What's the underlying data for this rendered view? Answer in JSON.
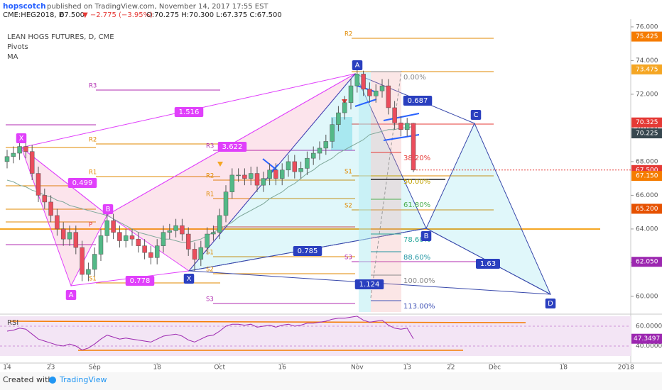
{
  "header": {
    "author": "hopscotch",
    "published": "published on TradingView.com, November 14, 2017 17:55 EST",
    "symbol": "CME:HEG2018, D",
    "last": "67.500",
    "change": "▼ −2.775 (−3.95%)",
    "ohlc": "O:70.275 H:70.300 L:67.375 C:67.500"
  },
  "legend": [
    "LEAN HOGS FUTURES, D, CME",
    "Pivots",
    "MA"
  ],
  "chart_data": {
    "type": "candlestick",
    "up_color": "#53b987",
    "down_color": "#eb4d5c",
    "ma_color": "#7fa89a",
    "rsi_color": "#9c27b0",
    "xlim": [
      -1.136,
      99.77
    ],
    "ylim": [
      59.07,
      76.46
    ],
    "xticks": [
      {
        "value": 0,
        "label": "14"
      },
      {
        "value": 7,
        "label": "23"
      },
      {
        "value": 14,
        "label": "Sep"
      },
      {
        "value": 24,
        "label": "18"
      },
      {
        "value": 34,
        "label": "Oct"
      },
      {
        "value": 44,
        "label": "16"
      },
      {
        "value": 56,
        "label": "Nov"
      },
      {
        "value": 64,
        "label": "13"
      },
      {
        "value": 71,
        "label": "22"
      },
      {
        "value": 78,
        "label": "Dec"
      },
      {
        "value": 89,
        "label": "18"
      },
      {
        "value": 99,
        "label": "2018"
      }
    ],
    "yticks": [
      {
        "value": 60,
        "label": "60.000"
      },
      {
        "value": 62,
        "label": "62.000"
      },
      {
        "value": 64,
        "label": "64.000"
      },
      {
        "value": 66,
        "label": "66.000"
      },
      {
        "value": 68,
        "label": "68.000"
      },
      {
        "value": 70,
        "label": "70.000"
      },
      {
        "value": 72,
        "label": "72.000"
      },
      {
        "value": 74,
        "label": "74.000"
      },
      {
        "value": 76,
        "label": "76.000"
      }
    ],
    "open": [
      68.0,
      68.3,
      68.5,
      68.9,
      68.6,
      67.3,
      66.0,
      65.6,
      64.8,
      64.0,
      63.4,
      63.8,
      62.9,
      61.3,
      61.6,
      62.5,
      63.6,
      64.5,
      63.8,
      63.3,
      63.6,
      63.4,
      63.0,
      62.6,
      62.3,
      63.0,
      63.8,
      63.9,
      64.2,
      63.7,
      62.8,
      62.2,
      62.9,
      63.7,
      63.8,
      64.8,
      66.2,
      67.2,
      67.2,
      67.0,
      67.3,
      66.6,
      67.0,
      67.5,
      67.0,
      67.5,
      68.0,
      67.4,
      67.6,
      68.2,
      68.5,
      68.8,
      69.2,
      70.2,
      70.9,
      71.5,
      72.5,
      73.2,
      72.3,
      71.9,
      72.2,
      72.5,
      71.2,
      70.3,
      69.9,
      70.275
    ],
    "high": [
      68.7,
      68.9,
      69.3,
      69.3,
      69.0,
      67.7,
      66.4,
      66.0,
      65.2,
      64.4,
      64.2,
      64.2,
      63.3,
      62.0,
      62.9,
      64.0,
      64.9,
      64.9,
      64.2,
      64.0,
      64.0,
      63.8,
      63.4,
      63.0,
      63.4,
      64.2,
      64.3,
      64.6,
      64.6,
      64.1,
      63.2,
      63.3,
      64.1,
      64.2,
      65.2,
      66.6,
      67.6,
      67.6,
      67.6,
      67.7,
      67.7,
      67.4,
      67.9,
      67.9,
      67.9,
      68.4,
      68.4,
      68.0,
      68.6,
      68.9,
      69.2,
      69.6,
      70.6,
      71.3,
      71.9,
      72.9,
      73.5,
      73.4,
      72.7,
      72.6,
      72.9,
      72.9,
      71.6,
      70.7,
      70.6,
      70.3
    ],
    "low": [
      67.6,
      67.9,
      68.1,
      68.2,
      66.9,
      65.6,
      65.2,
      64.4,
      63.6,
      63.0,
      63.0,
      62.5,
      60.9,
      60.9,
      61.2,
      62.1,
      63.2,
      63.4,
      62.9,
      62.9,
      63.0,
      62.6,
      62.2,
      61.9,
      61.9,
      62.6,
      63.4,
      63.5,
      63.3,
      62.4,
      61.5,
      61.8,
      62.5,
      63.3,
      63.4,
      64.4,
      65.8,
      66.8,
      66.6,
      66.6,
      66.2,
      66.2,
      66.6,
      66.6,
      66.6,
      67.1,
      67.0,
      67.0,
      67.2,
      67.8,
      68.1,
      68.4,
      68.8,
      69.8,
      70.5,
      71.1,
      72.1,
      71.9,
      71.5,
      71.5,
      71.8,
      70.8,
      69.9,
      69.5,
      69.5,
      67.375
    ],
    "close": [
      68.3,
      68.5,
      68.9,
      68.6,
      67.3,
      66.0,
      65.6,
      64.8,
      64.0,
      63.4,
      63.8,
      62.9,
      61.3,
      61.6,
      62.5,
      63.6,
      64.5,
      63.8,
      63.3,
      63.6,
      63.4,
      63.0,
      62.6,
      62.3,
      63.0,
      63.8,
      63.9,
      64.2,
      63.7,
      62.8,
      62.2,
      62.9,
      63.7,
      63.8,
      64.8,
      66.2,
      67.2,
      67.2,
      67.0,
      67.3,
      66.6,
      67.0,
      67.5,
      67.0,
      67.5,
      68.0,
      67.4,
      67.6,
      68.2,
      68.5,
      68.8,
      69.2,
      70.2,
      70.9,
      71.5,
      72.5,
      73.2,
      72.3,
      71.9,
      72.2,
      72.5,
      71.2,
      70.3,
      69.9,
      70.275,
      67.5
    ],
    "ma": [
      66.9,
      66.8,
      66.6,
      66.5,
      66.3,
      66.2,
      66.0,
      65.9,
      65.7,
      65.6,
      65.4,
      65.3,
      65.2,
      65.1,
      65.0,
      64.9,
      64.8,
      64.6,
      64.4,
      64.2,
      64.0,
      63.8,
      63.7,
      63.6,
      63.5,
      63.4,
      63.4,
      63.3,
      63.2,
      63.2,
      63.3,
      63.4,
      63.6,
      63.8,
      64.0,
      64.2,
      64.4,
      64.7,
      64.9,
      65.1,
      65.3,
      65.5,
      65.8,
      66.0,
      66.2,
      66.5,
      66.7,
      67.0,
      67.3,
      67.5,
      67.8,
      68.0,
      68.2,
      68.5,
      68.7,
      68.9,
      69.1,
      69.3,
      69.6,
      69.7,
      69.8,
      69.9,
      69.9,
      70.0,
      70.0,
      70.1
    ],
    "price_labels": [
      {
        "value": 75.425,
        "label": "75.425",
        "color": "#f57c00"
      },
      {
        "value": 73.475,
        "label": "73.475",
        "color": "#f5a623"
      },
      {
        "value": 70.325,
        "label": "70.325",
        "color": "#e53935"
      },
      {
        "value": 70.225,
        "label": "70.225",
        "color": "#37474f"
      },
      {
        "value": 67.5,
        "label": "67.500",
        "color": "#e53935"
      },
      {
        "value": 67.15,
        "label": "67.150",
        "color": "#f57c00"
      },
      {
        "value": 65.2,
        "label": "65.200",
        "color": "#e65100"
      },
      {
        "value": 62.05,
        "label": "62.050",
        "color": "#9c27b0"
      }
    ],
    "rsi_title": "RSI",
    "rsi_ylim": [
      22.9,
      72.1
    ],
    "rsi_yticks": [
      {
        "value": 60,
        "label": "60.0000"
      },
      {
        "value": 40,
        "label": "40.0000"
      }
    ],
    "rsi": [
      55,
      56,
      58,
      57,
      52,
      47,
      45,
      43,
      41,
      40,
      42,
      40,
      36,
      38,
      42,
      47,
      51,
      49,
      47,
      48,
      47,
      46,
      45,
      44,
      47,
      50,
      51,
      52,
      50,
      46,
      44,
      47,
      50,
      51,
      55,
      60,
      62,
      62,
      61,
      62,
      59,
      60,
      61,
      59,
      61,
      62,
      60,
      61,
      63,
      63,
      64,
      65,
      67,
      68,
      68,
      69,
      70,
      66,
      64,
      65,
      66,
      61,
      58,
      57,
      58,
      47.3497
    ],
    "rsi_last_label": "47.3497"
  },
  "pattern_1": {
    "points": [
      "X",
      "A",
      "B"
    ],
    "ratios": [
      0.499,
      0.778,
      1.516,
      3.622
    ]
  },
  "pattern_2": {
    "points": [
      "X",
      "A",
      "B",
      "C",
      "D"
    ],
    "ratios": [
      0.785,
      0.687,
      1.63,
      1.124
    ]
  },
  "fib_levels": [
    "0.00%",
    "38.20%",
    "50.00%",
    "61.80%",
    "78.60%",
    "88.60%",
    "100.00%",
    "113.00%"
  ],
  "pivots": [
    [
      "R3",
      "R2",
      "R1",
      "P",
      "S1"
    ],
    [
      "R3",
      "R2",
      "R1",
      "S1",
      "S2",
      "S3"
    ],
    [
      "R2",
      "S1",
      "S2",
      "S3"
    ]
  ],
  "footer": {
    "created": "Created with",
    "brand": "TradingView"
  }
}
